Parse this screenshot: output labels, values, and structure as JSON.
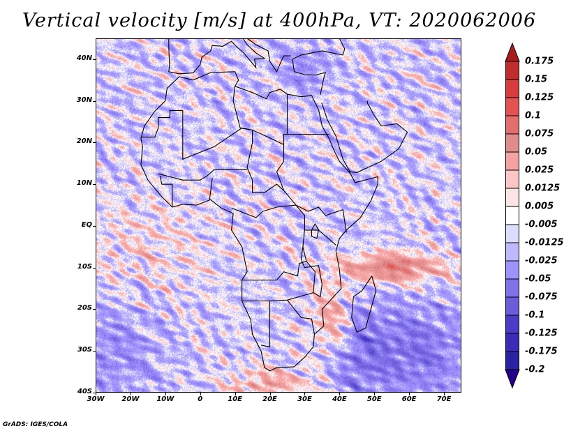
{
  "title": "Vertical velocity [m/s] at 400hPa, VT: 2020062006",
  "footer": "GrADS: IGES/COLA",
  "map": {
    "lon_range": [
      -30,
      75
    ],
    "lat_range": [
      -40,
      45
    ],
    "lat_labels": [
      {
        "lat": 40,
        "label": "40N"
      },
      {
        "lat": 30,
        "label": "30N"
      },
      {
        "lat": 20,
        "label": "20N"
      },
      {
        "lat": 10,
        "label": "10N"
      },
      {
        "lat": 0,
        "label": "EQ"
      },
      {
        "lat": -10,
        "label": "10S"
      },
      {
        "lat": -20,
        "label": "20S"
      },
      {
        "lat": -30,
        "label": "30S"
      },
      {
        "lat": -40,
        "label": "40S"
      }
    ],
    "lon_labels": [
      {
        "lon": -30,
        "label": "30W"
      },
      {
        "lon": -20,
        "label": "20W"
      },
      {
        "lon": -10,
        "label": "10W"
      },
      {
        "lon": 0,
        "label": "0"
      },
      {
        "lon": 10,
        "label": "10E"
      },
      {
        "lon": 20,
        "label": "20E"
      },
      {
        "lon": 30,
        "label": "30E"
      },
      {
        "lon": 40,
        "label": "40E"
      },
      {
        "lon": 50,
        "label": "50E"
      },
      {
        "lon": 60,
        "label": "60E"
      },
      {
        "lon": 70,
        "label": "70E"
      }
    ]
  },
  "colorbar": {
    "labels": [
      "0.175",
      "0.15",
      "0.125",
      "0.1",
      "0.075",
      "0.05",
      "0.025",
      "0.0125",
      "0.005",
      "-0.005",
      "-0.0125",
      "-0.025",
      "-0.05",
      "-0.075",
      "-0.1",
      "-0.125",
      "-0.175",
      "-0.2"
    ],
    "top_arrow_color": "#a81e1e",
    "bottom_arrow_color": "#22008c",
    "band_colors": [
      "#c22c2c",
      "#d83c3c",
      "#e45252",
      "#e26e6e",
      "#e08c8c",
      "#f4a2a2",
      "#fcc6c6",
      "#fde4e4",
      "#ffffff",
      "#dcdcfc",
      "#c0b8fc",
      "#a092fc",
      "#8272ea",
      "#6c5cd8",
      "#4a3cc8",
      "#3a2cb8",
      "#2a22a2"
    ]
  }
}
